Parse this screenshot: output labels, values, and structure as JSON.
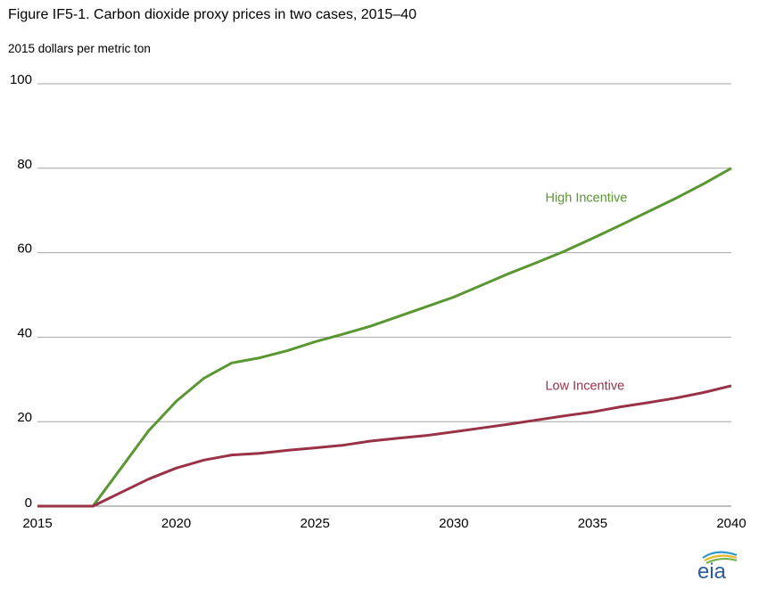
{
  "title": "Figure IF5-1. Carbon dioxide proxy prices in two cases, 2015–40",
  "units_label": "2015 dollars per metric ton",
  "logo_text": "eia",
  "colors": {
    "high": "#5a9632",
    "low": "#9a3247",
    "grid": "#a6a6a6",
    "logo_text": "#2a5d9c"
  },
  "chart_data": {
    "type": "line",
    "title": "Figure IF5-1. Carbon dioxide proxy prices in two cases, 2015–40",
    "ylabel": "2015 dollars per metric ton",
    "xlim": [
      2015,
      2040
    ],
    "ylim": [
      0,
      100
    ],
    "xticks": [
      2015,
      2020,
      2025,
      2030,
      2035,
      2040
    ],
    "yticks": [
      0,
      20,
      40,
      60,
      80,
      100
    ],
    "grid": true,
    "legend": "inline labels",
    "x": [
      2015,
      2016,
      2017,
      2018,
      2019,
      2020,
      2021,
      2022,
      2023,
      2024,
      2025,
      2026,
      2027,
      2028,
      2029,
      2030,
      2031,
      2032,
      2033,
      2034,
      2035,
      2036,
      2037,
      2038,
      2039,
      2040
    ],
    "series": [
      {
        "name": "High Incentive",
        "label_year": 2033.3,
        "label_value": 72,
        "values": [
          0,
          0,
          0,
          8.9,
          17.8,
          24.8,
          30.3,
          33.9,
          35.1,
          36.8,
          38.9,
          40.7,
          42.6,
          44.9,
          47.2,
          49.5,
          52.3,
          55.1,
          57.7,
          60.4,
          63.4,
          66.5,
          69.7,
          72.9,
          76.3,
          80.0
        ]
      },
      {
        "name": "Low Incentive",
        "label_year": 2033.3,
        "label_value": 27.5,
        "values": [
          0,
          0,
          0,
          3.2,
          6.4,
          9.0,
          10.9,
          12.1,
          12.5,
          13.2,
          13.8,
          14.4,
          15.4,
          16.1,
          16.7,
          17.6,
          18.5,
          19.4,
          20.4,
          21.4,
          22.3,
          23.5,
          24.5,
          25.6,
          26.9,
          28.5
        ]
      }
    ]
  }
}
